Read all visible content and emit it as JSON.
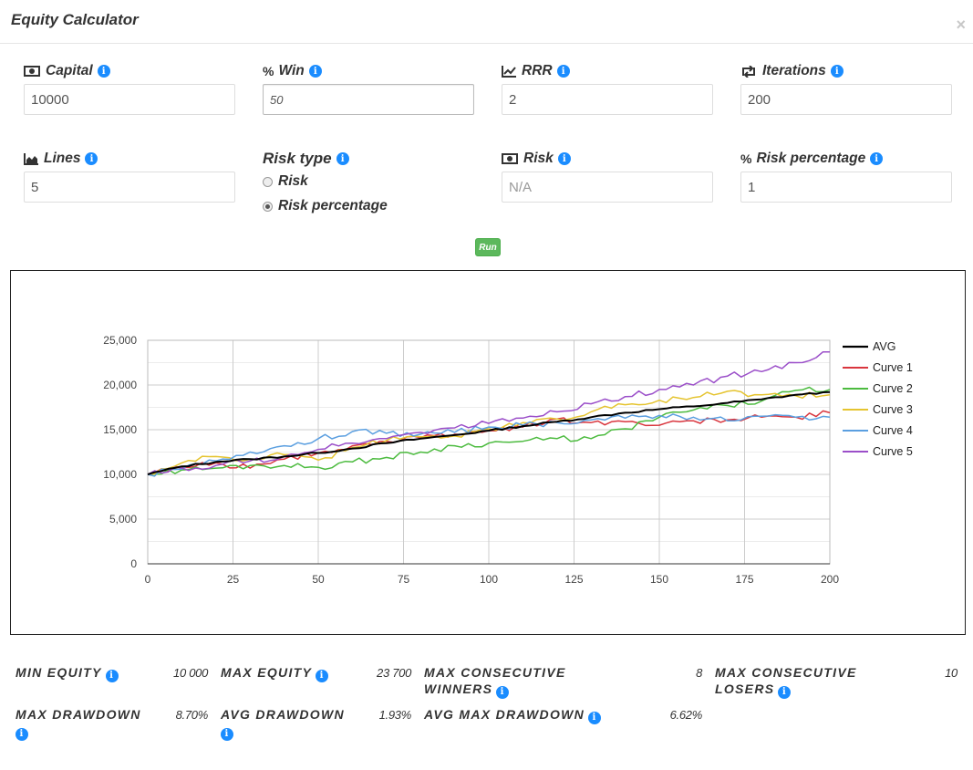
{
  "header": {
    "title": "Equity Calculator",
    "close": "×"
  },
  "fields": {
    "capital": {
      "label": "Capital",
      "value": "10000",
      "icon": "money-icon"
    },
    "win": {
      "label": "Win",
      "value": "50",
      "icon": "percent-icon"
    },
    "rrr": {
      "label": "RRR",
      "value": "2",
      "icon": "line-chart-icon"
    },
    "iterations": {
      "label": "Iterations",
      "value": "200",
      "icon": "retweet-icon"
    },
    "lines": {
      "label": "Lines",
      "value": "5",
      "icon": "area-chart-icon"
    },
    "risk_type": {
      "label": "Risk type",
      "options": [
        "Risk",
        "Risk percentage"
      ],
      "selected": "Risk percentage"
    },
    "risk": {
      "label": "Risk",
      "value": "N/A",
      "icon": "money-icon"
    },
    "risk_percentage": {
      "label": "Risk percentage",
      "value": "1",
      "icon": "percent-icon"
    }
  },
  "run_label": "Run",
  "stats": {
    "min_equity": {
      "label": "MIN EQUITY",
      "value": "10 000"
    },
    "max_equity": {
      "label": "MAX EQUITY",
      "value": "23 700"
    },
    "max_consecutive_winners": {
      "label_line1": "MAX CONSECUTIVE",
      "label_line2": "WINNERS",
      "value": "8"
    },
    "max_consecutive_losers": {
      "label_line1": "MAX CONSECUTIVE",
      "label_line2": "LOSERS",
      "value": "10"
    },
    "max_drawdown": {
      "label": "MAX DRAWDOWN",
      "value": "8.70%"
    },
    "avg_drawdown": {
      "label": "AVG DRAWDOWN",
      "value": "1.93%"
    },
    "avg_max_drawdown": {
      "label": "AVG MAX DRAWDOWN",
      "value": "6.62%"
    }
  },
  "chart_data": {
    "type": "line",
    "xlim": [
      0,
      200
    ],
    "ylim": [
      0,
      25000
    ],
    "xticks": [
      "0",
      "25",
      "50",
      "75",
      "100",
      "125",
      "150",
      "175",
      "200"
    ],
    "yticks": [
      "0",
      "5,000",
      "10,000",
      "15,000",
      "20,000",
      "25,000"
    ],
    "grid": true,
    "legend_position": "right",
    "series": [
      {
        "name": "AVG",
        "color": "#000000",
        "x": [
          0,
          10,
          20,
          30,
          40,
          50,
          60,
          70,
          80,
          90,
          100,
          110,
          120,
          130,
          140,
          150,
          160,
          170,
          180,
          190,
          200
        ],
        "y": [
          10000,
          10900,
          11400,
          11700,
          12000,
          12400,
          12900,
          13500,
          14000,
          14400,
          14900,
          15400,
          15900,
          16400,
          16900,
          17300,
          17600,
          18000,
          18400,
          18900,
          19200
        ]
      },
      {
        "name": "Curve 1",
        "color": "#d9363e",
        "x": [
          0,
          10,
          20,
          30,
          40,
          50,
          60,
          70,
          80,
          90,
          100,
          110,
          120,
          130,
          140,
          150,
          160,
          170,
          180,
          190,
          200
        ],
        "y": [
          10000,
          10800,
          11300,
          10700,
          11700,
          12400,
          13200,
          13700,
          14100,
          14500,
          14900,
          15300,
          16200,
          15800,
          15900,
          15500,
          16000,
          16100,
          16400,
          16400,
          16900
        ]
      },
      {
        "name": "Curve 2",
        "color": "#4cbb3f",
        "x": [
          0,
          10,
          20,
          30,
          40,
          50,
          60,
          70,
          80,
          90,
          100,
          110,
          120,
          130,
          140,
          150,
          160,
          170,
          180,
          190,
          200
        ],
        "y": [
          10000,
          10500,
          10700,
          11000,
          11000,
          10800,
          11400,
          11900,
          12500,
          13200,
          13500,
          13700,
          14000,
          14000,
          15100,
          16400,
          17200,
          17700,
          18200,
          19400,
          19500
        ]
      },
      {
        "name": "Curve 3",
        "color": "#e5c430",
        "x": [
          0,
          10,
          20,
          30,
          40,
          50,
          60,
          70,
          80,
          90,
          100,
          110,
          120,
          130,
          140,
          150,
          160,
          170,
          180,
          190,
          200
        ],
        "y": [
          10000,
          11300,
          12000,
          11700,
          12200,
          11600,
          13000,
          13800,
          14200,
          14300,
          15100,
          15800,
          16200,
          17000,
          17800,
          18300,
          18600,
          19300,
          18900,
          18800,
          18900
        ]
      },
      {
        "name": "Curve 4",
        "color": "#5b9fe0",
        "x": [
          0,
          10,
          20,
          30,
          40,
          50,
          60,
          70,
          80,
          90,
          100,
          110,
          120,
          130,
          140,
          150,
          160,
          170,
          180,
          190,
          200
        ],
        "y": [
          10000,
          10600,
          11500,
          12500,
          13200,
          14000,
          14800,
          14600,
          14500,
          14700,
          15300,
          15500,
          15800,
          16100,
          16300,
          16600,
          16400,
          16000,
          16500,
          16400,
          16400
        ]
      },
      {
        "name": "Curve 5",
        "color": "#9b4fc9",
        "x": [
          0,
          10,
          20,
          30,
          40,
          50,
          60,
          70,
          80,
          90,
          100,
          110,
          120,
          130,
          140,
          150,
          160,
          170,
          180,
          190,
          200
        ],
        "y": [
          10000,
          10700,
          11000,
          11500,
          12000,
          12800,
          13500,
          14000,
          14700,
          15200,
          15700,
          16300,
          17000,
          17900,
          18700,
          19500,
          20000,
          21000,
          21500,
          22500,
          23700
        ]
      }
    ]
  }
}
